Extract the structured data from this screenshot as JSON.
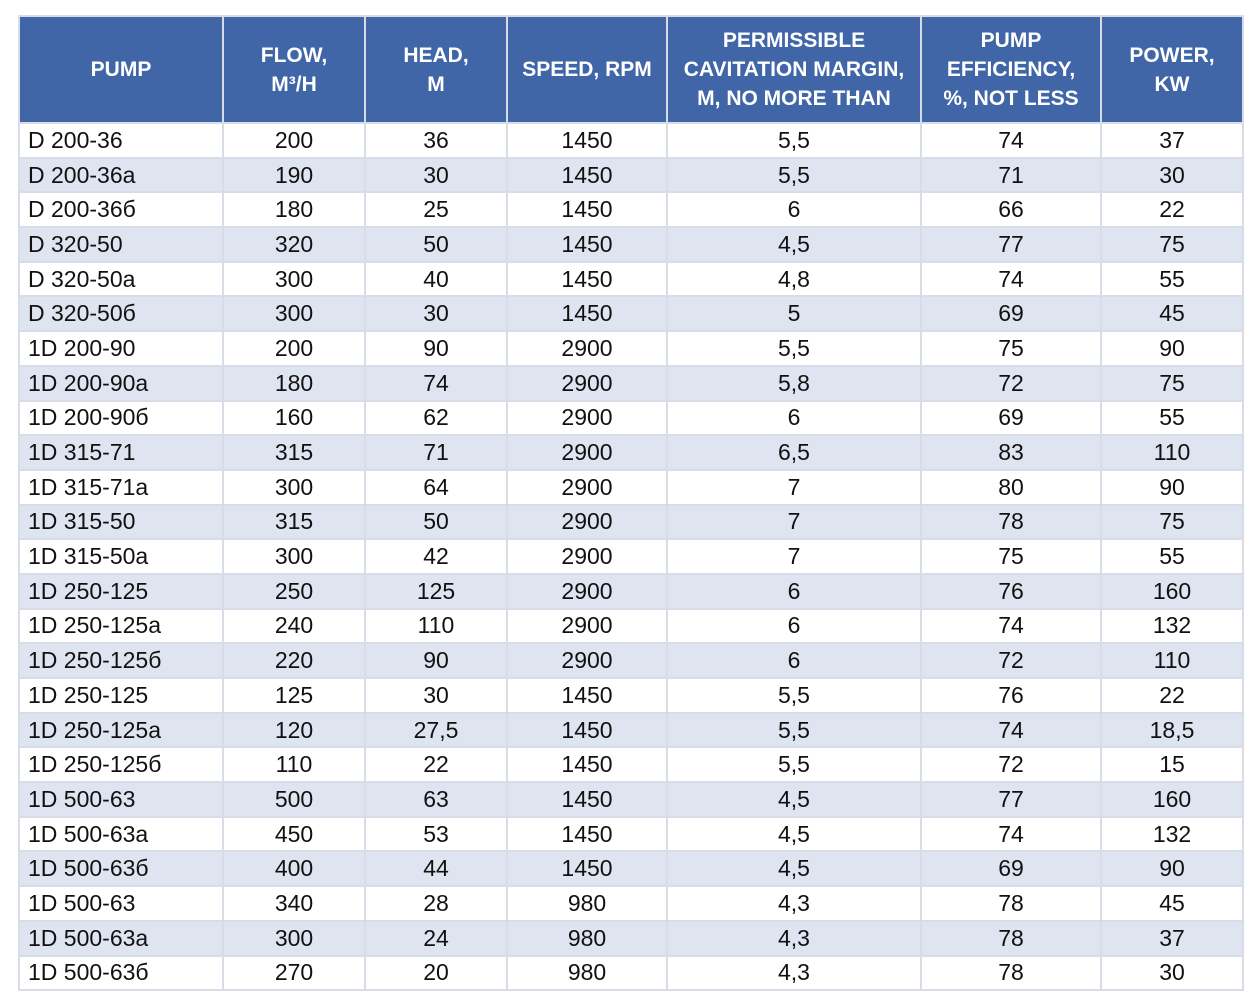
{
  "table": {
    "header": [
      [
        "PUMP"
      ],
      [
        "FLOW,",
        "M³/H"
      ],
      [
        "HEAD,",
        "M"
      ],
      [
        "SPEED, RPM"
      ],
      [
        "PERMISSIBLE",
        "CAVITATION MARGIN,",
        "M, NO MORE THAN"
      ],
      [
        "PUMP",
        "EFFICIENCY,",
        "%, NOT LESS"
      ],
      [
        "POWER,",
        "KW"
      ]
    ],
    "rows": [
      [
        "D 200-36",
        "200",
        "36",
        "1450",
        "5,5",
        "74",
        "37"
      ],
      [
        "D 200-36a",
        "190",
        "30",
        "1450",
        "5,5",
        "71",
        "30"
      ],
      [
        "D 200-36б",
        "180",
        "25",
        "1450",
        "6",
        "66",
        "22"
      ],
      [
        "D 320-50",
        "320",
        "50",
        "1450",
        "4,5",
        "77",
        "75"
      ],
      [
        "D 320-50a",
        "300",
        "40",
        "1450",
        "4,8",
        "74",
        "55"
      ],
      [
        "D 320-50б",
        "300",
        "30",
        "1450",
        "5",
        "69",
        "45"
      ],
      [
        "1D 200-90",
        "200",
        "90",
        "2900",
        "5,5",
        "75",
        "90"
      ],
      [
        "1D 200-90a",
        "180",
        "74",
        "2900",
        "5,8",
        "72",
        "75"
      ],
      [
        "1D 200-90б",
        "160",
        "62",
        "2900",
        "6",
        "69",
        "55"
      ],
      [
        "1D 315-71",
        "315",
        "71",
        "2900",
        "6,5",
        "83",
        "110"
      ],
      [
        "1D 315-71a",
        "300",
        "64",
        "2900",
        "7",
        "80",
        "90"
      ],
      [
        "1D 315-50",
        "315",
        "50",
        "2900",
        "7",
        "78",
        "75"
      ],
      [
        "1D 315-50a",
        "300",
        "42",
        "2900",
        "7",
        "75",
        "55"
      ],
      [
        "1D 250-125",
        "250",
        "125",
        "2900",
        "6",
        "76",
        "160"
      ],
      [
        "1D 250-125a",
        "240",
        "110",
        "2900",
        "6",
        "74",
        "132"
      ],
      [
        "1D 250-125б",
        "220",
        "90",
        "2900",
        "6",
        "72",
        "110"
      ],
      [
        "1D 250-125",
        "125",
        "30",
        "1450",
        "5,5",
        "76",
        "22"
      ],
      [
        "1D 250-125a",
        "120",
        "27,5",
        "1450",
        "5,5",
        "74",
        "18,5"
      ],
      [
        "1D 250-125б",
        "110",
        "22",
        "1450",
        "5,5",
        "72",
        "15"
      ],
      [
        "1D 500-63",
        "500",
        "63",
        "1450",
        "4,5",
        "77",
        "160"
      ],
      [
        "1D 500-63a",
        "450",
        "53",
        "1450",
        "4,5",
        "74",
        "132"
      ],
      [
        "1D 500-63б",
        "400",
        "44",
        "1450",
        "4,5",
        "69",
        "90"
      ],
      [
        "1D 500-63",
        "340",
        "28",
        "980",
        "4,3",
        "78",
        "45"
      ],
      [
        "1D 500-63a",
        "300",
        "24",
        "980",
        "4,3",
        "78",
        "37"
      ],
      [
        "1D 500-63б",
        "270",
        "20",
        "980",
        "4,3",
        "78",
        "30"
      ]
    ]
  }
}
